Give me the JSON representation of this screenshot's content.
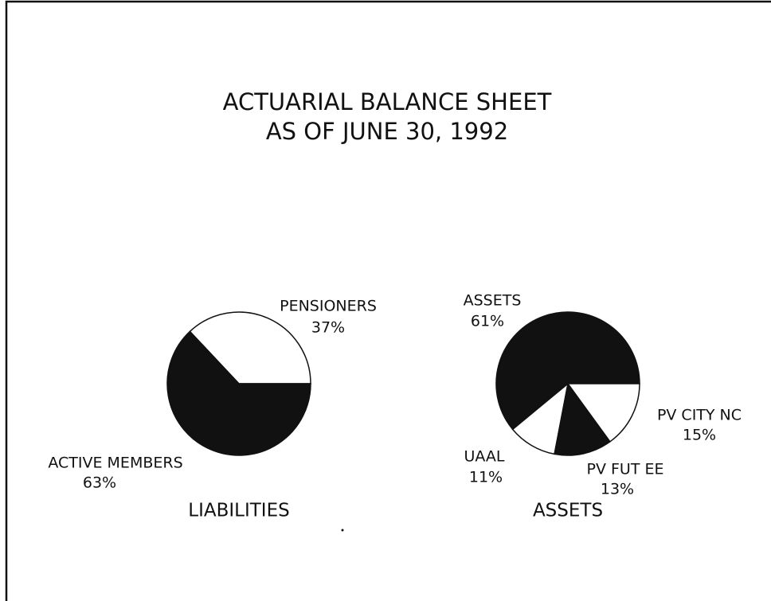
{
  "title": [
    "ACTUARIAL BALANCE SHEET",
    "AS OF JUNE 30, 1992"
  ],
  "chart_data": [
    {
      "type": "pie",
      "title": "LIABILITIES",
      "categories": [
        "PENSIONERS",
        "ACTIVE MEMBERS"
      ],
      "values": [
        37,
        63
      ],
      "value_labels": [
        "37%",
        "63%"
      ],
      "colors": [
        "#ffffff",
        "#111111"
      ]
    },
    {
      "type": "pie",
      "title": "ASSETS",
      "categories": [
        "ASSETS",
        "UAAL",
        "PV FUT EE",
        "PV CITY NC"
      ],
      "values": [
        61,
        11,
        13,
        15
      ],
      "value_labels": [
        "61%",
        "11%",
        "13%",
        "15%"
      ],
      "colors": [
        "#111111",
        "#ffffff",
        "#111111",
        "#ffffff"
      ]
    }
  ]
}
